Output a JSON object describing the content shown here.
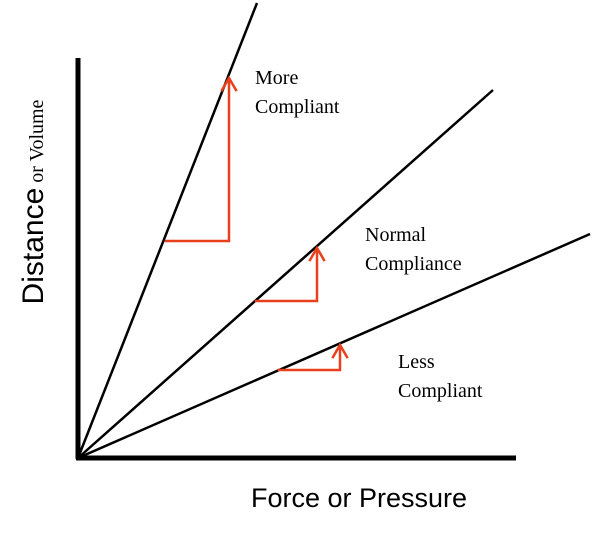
{
  "axes": {
    "x_label": "Force or Pressure",
    "y_label_part1": "Distance",
    "y_label_part2": " or Volume"
  },
  "lines": [
    {
      "id": "more",
      "label_line1": "More",
      "label_line2": "Compliant"
    },
    {
      "id": "normal",
      "label_line1": "Normal",
      "label_line2": "Compliance"
    },
    {
      "id": "less",
      "label_line1": "Less",
      "label_line2": "Compliant"
    }
  ],
  "colors": {
    "axis": "#000000",
    "line": "#000000",
    "slope_indicator": "#e8401c"
  }
}
